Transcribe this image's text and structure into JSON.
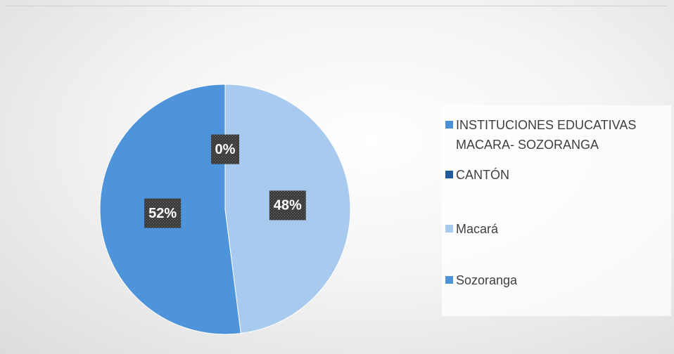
{
  "chart_data": {
    "type": "pie",
    "categories": [
      "INSTITUCIONES EDUCATIVAS MACARA- SOZORANGA",
      "CANTÓN",
      "Macará",
      "Sozoranga"
    ],
    "values": [
      0,
      0,
      48,
      52
    ],
    "value_labels": [
      "0%",
      "0%",
      "48%",
      "52%"
    ],
    "colors": [
      "#4a8fd8",
      "#1f5b9c",
      "#a8caee",
      "#4e94db"
    ],
    "legend": "right"
  }
}
